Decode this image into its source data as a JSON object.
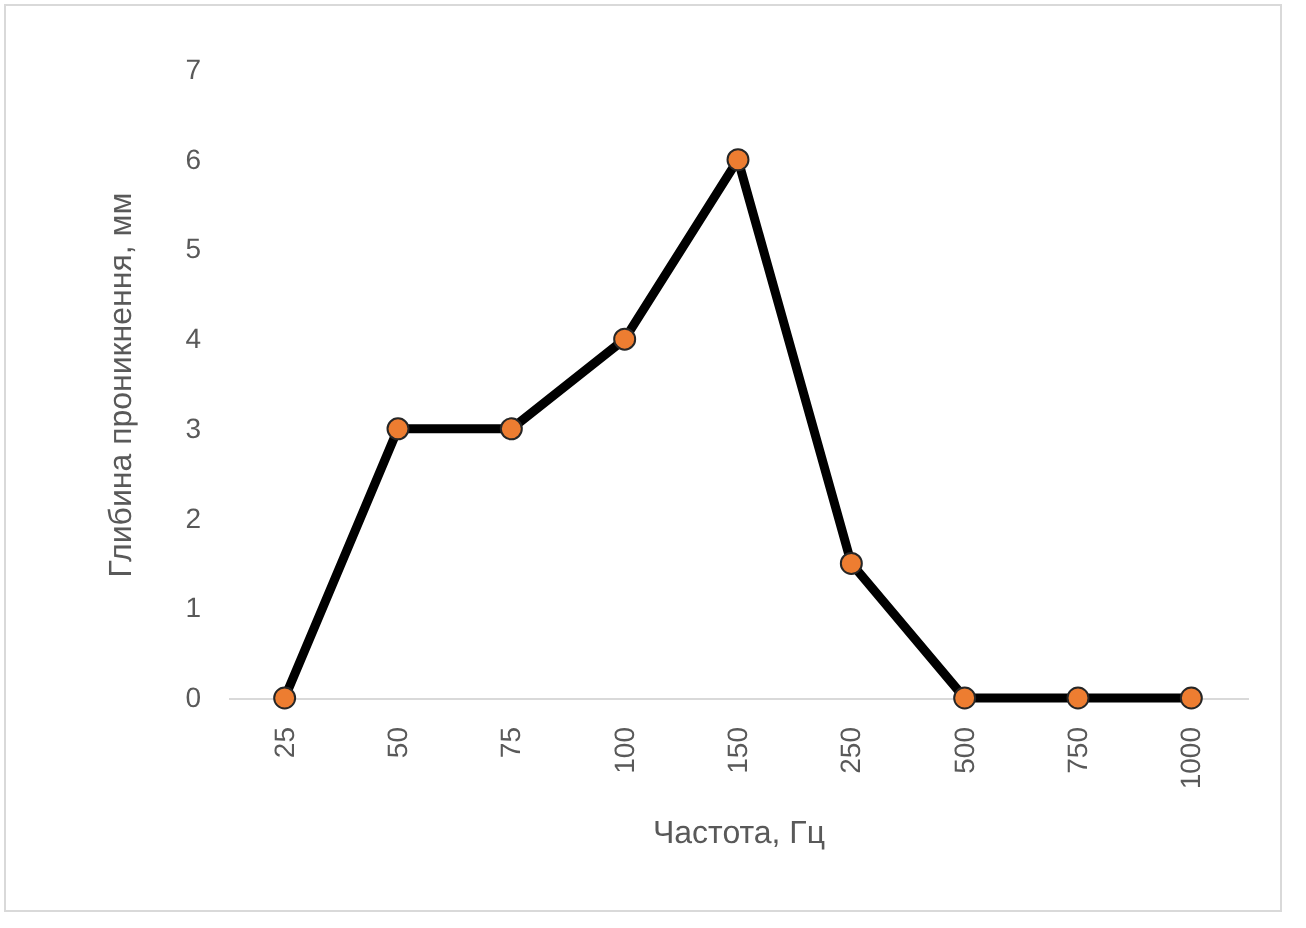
{
  "chart_data": {
    "type": "line",
    "xlabel": "Частота, Гц",
    "ylabel": "Глибина проникнення, мм",
    "categories": [
      "25",
      "50",
      "75",
      "100",
      "150",
      "250",
      "500",
      "750",
      "1000"
    ],
    "series": [
      {
        "color": "#000000",
        "colors": [
          "#ed7d31",
          "#ed7d31",
          "#ed7d31",
          "#ed7d31",
          "#ed7d31",
          "#ed7d31",
          "#ed7d31",
          "#ed7d31",
          "#ed7d31"
        ],
        "values": [
          0,
          3,
          3,
          4,
          6,
          1.5,
          0,
          0,
          0
        ]
      }
    ],
    "ylim": [
      0,
      7
    ],
    "yticks": [
      0,
      1,
      2,
      3,
      4,
      5,
      6,
      7
    ],
    "marker": "circle",
    "line_style": "solid"
  }
}
